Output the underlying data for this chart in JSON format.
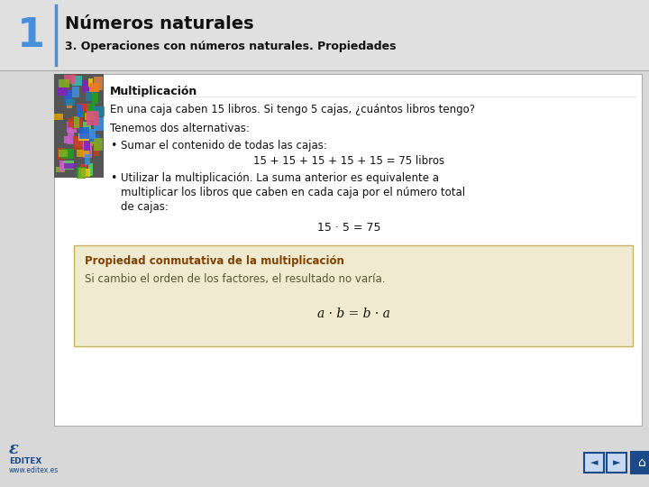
{
  "bg_color": "#d8d8d8",
  "header_bg": "#e0e0e0",
  "number_color": "#4a90d9",
  "number_text": "1",
  "title_main": "Números naturales",
  "title_sub": "3. Operaciones con números naturales. Propiedades",
  "content_bg": "#ffffff",
  "content_border": "#aaaaaa",
  "section_title": "Multiplicación",
  "line1": "En una caja caben 15 libros. Si tengo 5 cajas, ¿cuántos libros tengo?",
  "line2": "Tenemos dos alternativas:",
  "bullet1_label": "•",
  "bullet1_text": "Sumar el contenido de todas las cajas:",
  "bullet1_formula": "15 + 15 + 15 + 15 + 15 = 75 libros",
  "bullet2_label": "•",
  "bullet2_line1": "Utilizar la multiplicación. La suma anterior es equivalente a",
  "bullet2_line2": "multiplicar los libros que caben en cada caja por el número total",
  "bullet2_line3": "de cajas:",
  "bullet2_formula": "15 · 5 = 75",
  "box_bg": "#f0ead0",
  "box_border": "#c8b060",
  "box_title": "Propiedad conmutativa de la multiplicación",
  "box_line1": "Si cambio el orden de los factores, el resultado no varía.",
  "box_formula": "a · b = b · a",
  "footer_text1": "EDITEX",
  "footer_text2": "www.editex.es",
  "footer_color": "#1a4a8a",
  "nav_color": "#1a4a8a",
  "nav_bg": "#c8d8f0"
}
